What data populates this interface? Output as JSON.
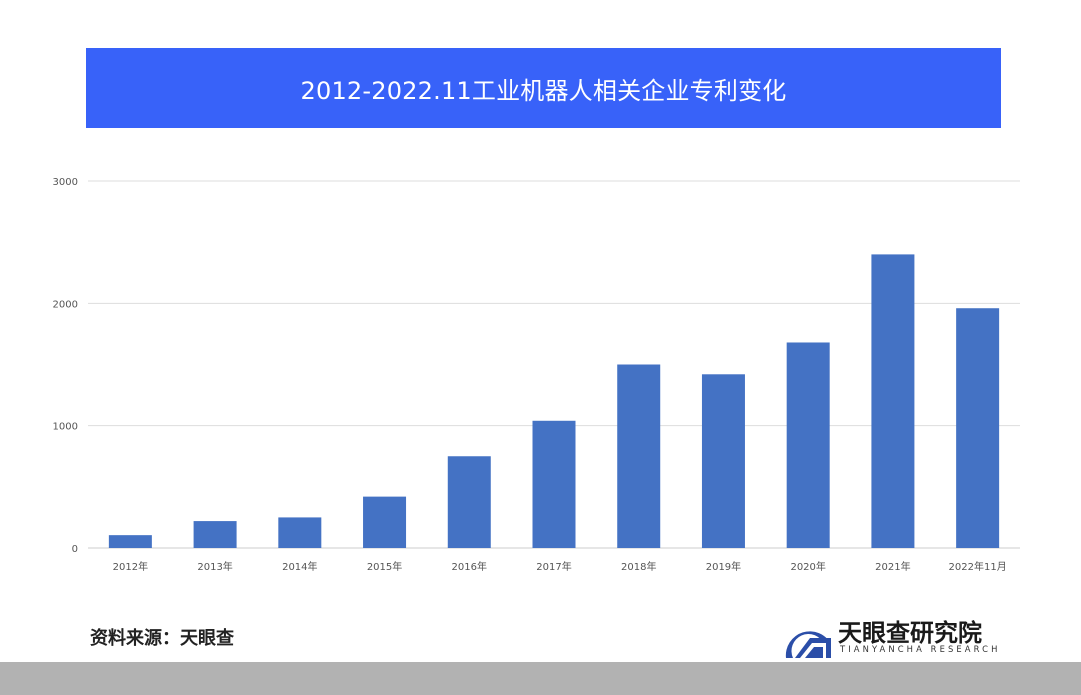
{
  "chart_data": {
    "type": "bar",
    "title": "2012-2022.11工业机器人相关企业专利变化",
    "categories": [
      "2012年",
      "2013年",
      "2014年",
      "2015年",
      "2016年",
      "2017年",
      "2018年",
      "2019年",
      "2020年",
      "2021年",
      "2022年11月"
    ],
    "values": [
      105,
      220,
      250,
      420,
      750,
      1040,
      1500,
      1420,
      1680,
      2400,
      1960
    ],
    "yticks": [
      "0",
      "1000",
      "2000",
      "3000"
    ],
    "ylim": [
      0,
      3000
    ],
    "grid": true,
    "legend": "none",
    "bar_color": "#4472c4"
  },
  "source": "资料来源：天眼查",
  "logo": {
    "name": "天眼查研究院",
    "subtitle": "TIANYANCHA RESEARCH"
  },
  "colors": {
    "banner": "#3862f9",
    "bar": "#4472c4",
    "grid": "#dddddd",
    "footer_band": "#b2b2b2"
  }
}
